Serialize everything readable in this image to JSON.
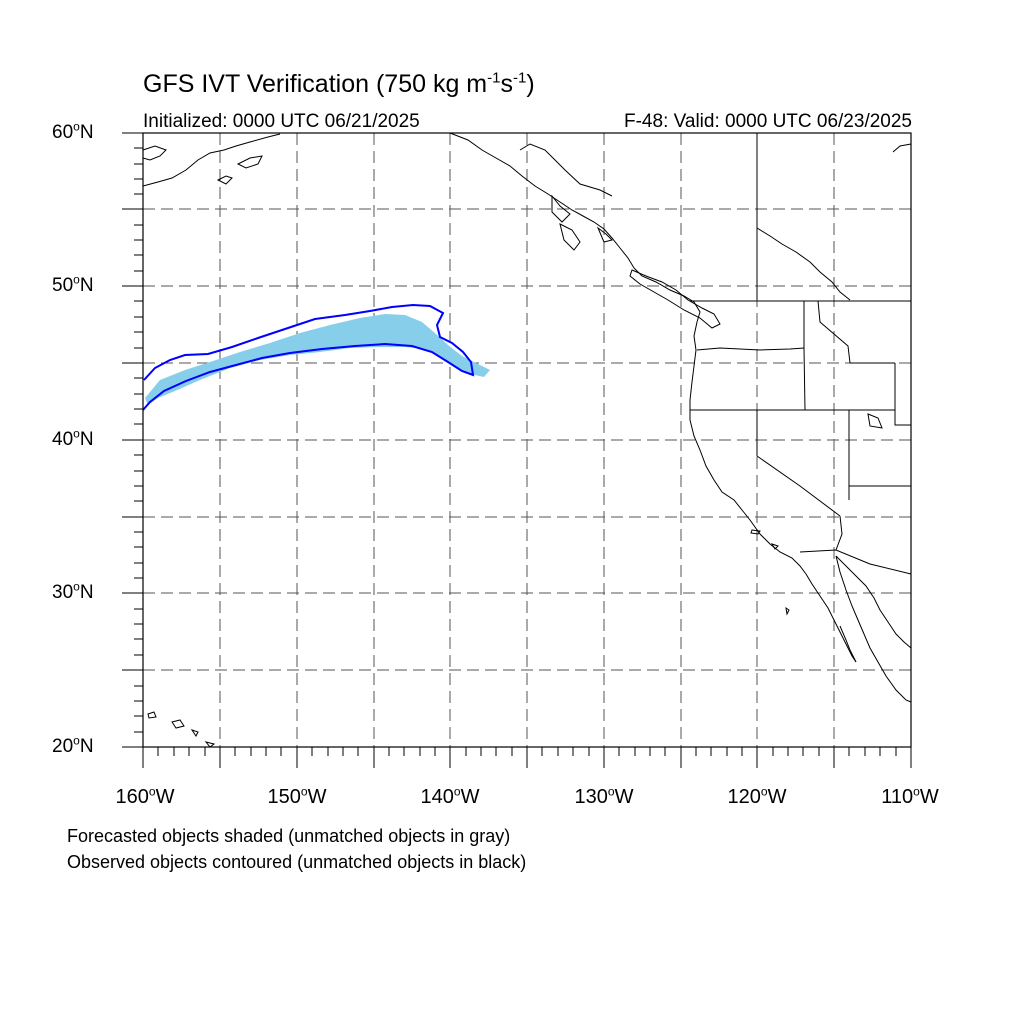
{
  "title": {
    "prefix": "GFS IVT Verification (750 kg m",
    "exp1": "-1",
    "mid": "s",
    "exp2": "-1",
    "suffix": ")"
  },
  "initialized": "Initialized: 0000 UTC 06/21/2025",
  "valid": "F-48: Valid: 0000 UTC 06/23/2025",
  "lat_labels": [
    {
      "deg": "60",
      "unit": "o",
      "hemi": "N"
    },
    {
      "deg": "50",
      "unit": "o",
      "hemi": "N"
    },
    {
      "deg": "40",
      "unit": "o",
      "hemi": "N"
    },
    {
      "deg": "30",
      "unit": "o",
      "hemi": "N"
    },
    {
      "deg": "20",
      "unit": "o",
      "hemi": "N"
    }
  ],
  "lon_labels": [
    {
      "deg": "160",
      "unit": "o",
      "hemi": "W"
    },
    {
      "deg": "150",
      "unit": "o",
      "hemi": "W"
    },
    {
      "deg": "140",
      "unit": "o",
      "hemi": "W"
    },
    {
      "deg": "130",
      "unit": "o",
      "hemi": "W"
    },
    {
      "deg": "120",
      "unit": "o",
      "hemi": "W"
    },
    {
      "deg": "110",
      "unit": "o",
      "hemi": "W"
    }
  ],
  "notes": {
    "line1": "Forecasted objects shaded (unmatched objects in gray)",
    "line2": "Observed objects contoured (unmatched objects in black)"
  },
  "map": {
    "lon_range": [
      -160,
      -110
    ],
    "lat_range": [
      20,
      60
    ],
    "grid_interval_deg": 5,
    "grid_style": "dashed",
    "colors": {
      "forecast_fill": "#87ceeb",
      "observed_contour": "#0000ff",
      "coastline": "#000000",
      "grid": "#555555"
    }
  }
}
